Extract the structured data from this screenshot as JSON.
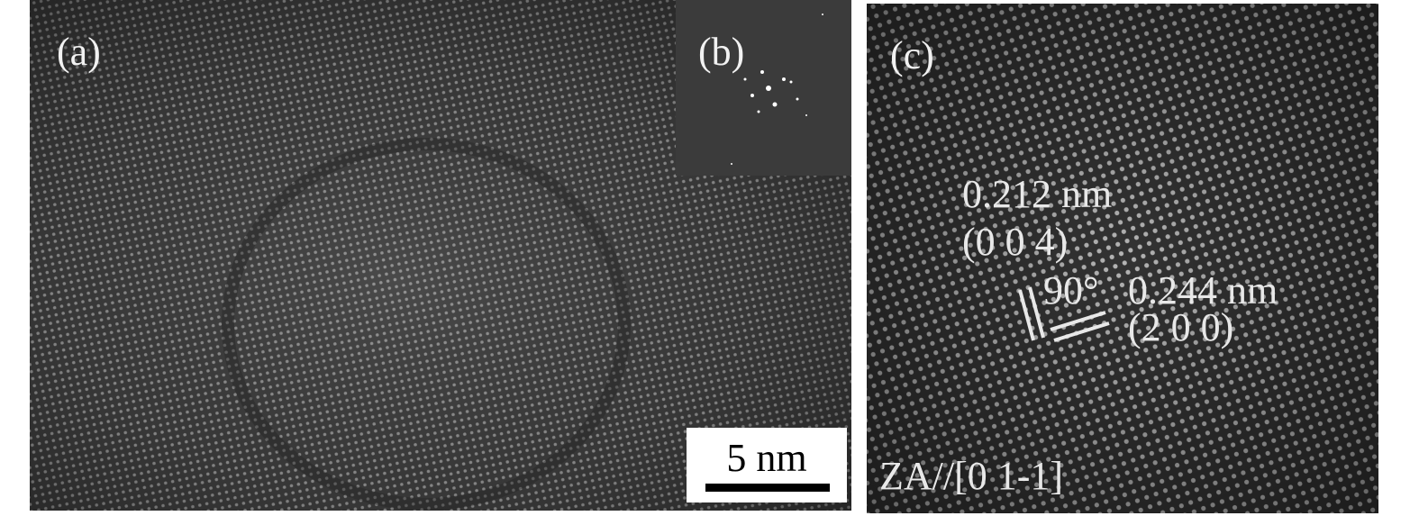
{
  "panels": {
    "a": {
      "label": "(a)",
      "scale_bar": "5 nm"
    },
    "b": {
      "label": "(b)"
    },
    "c": {
      "label": "(c)",
      "spacing_1": "0.212 nm",
      "plane_1": "(0 0 4)",
      "angle": "90°",
      "spacing_2": "0.244 nm",
      "plane_2": "(2 0 0)",
      "zone_axis": "ZA//[0 1-1]"
    }
  }
}
